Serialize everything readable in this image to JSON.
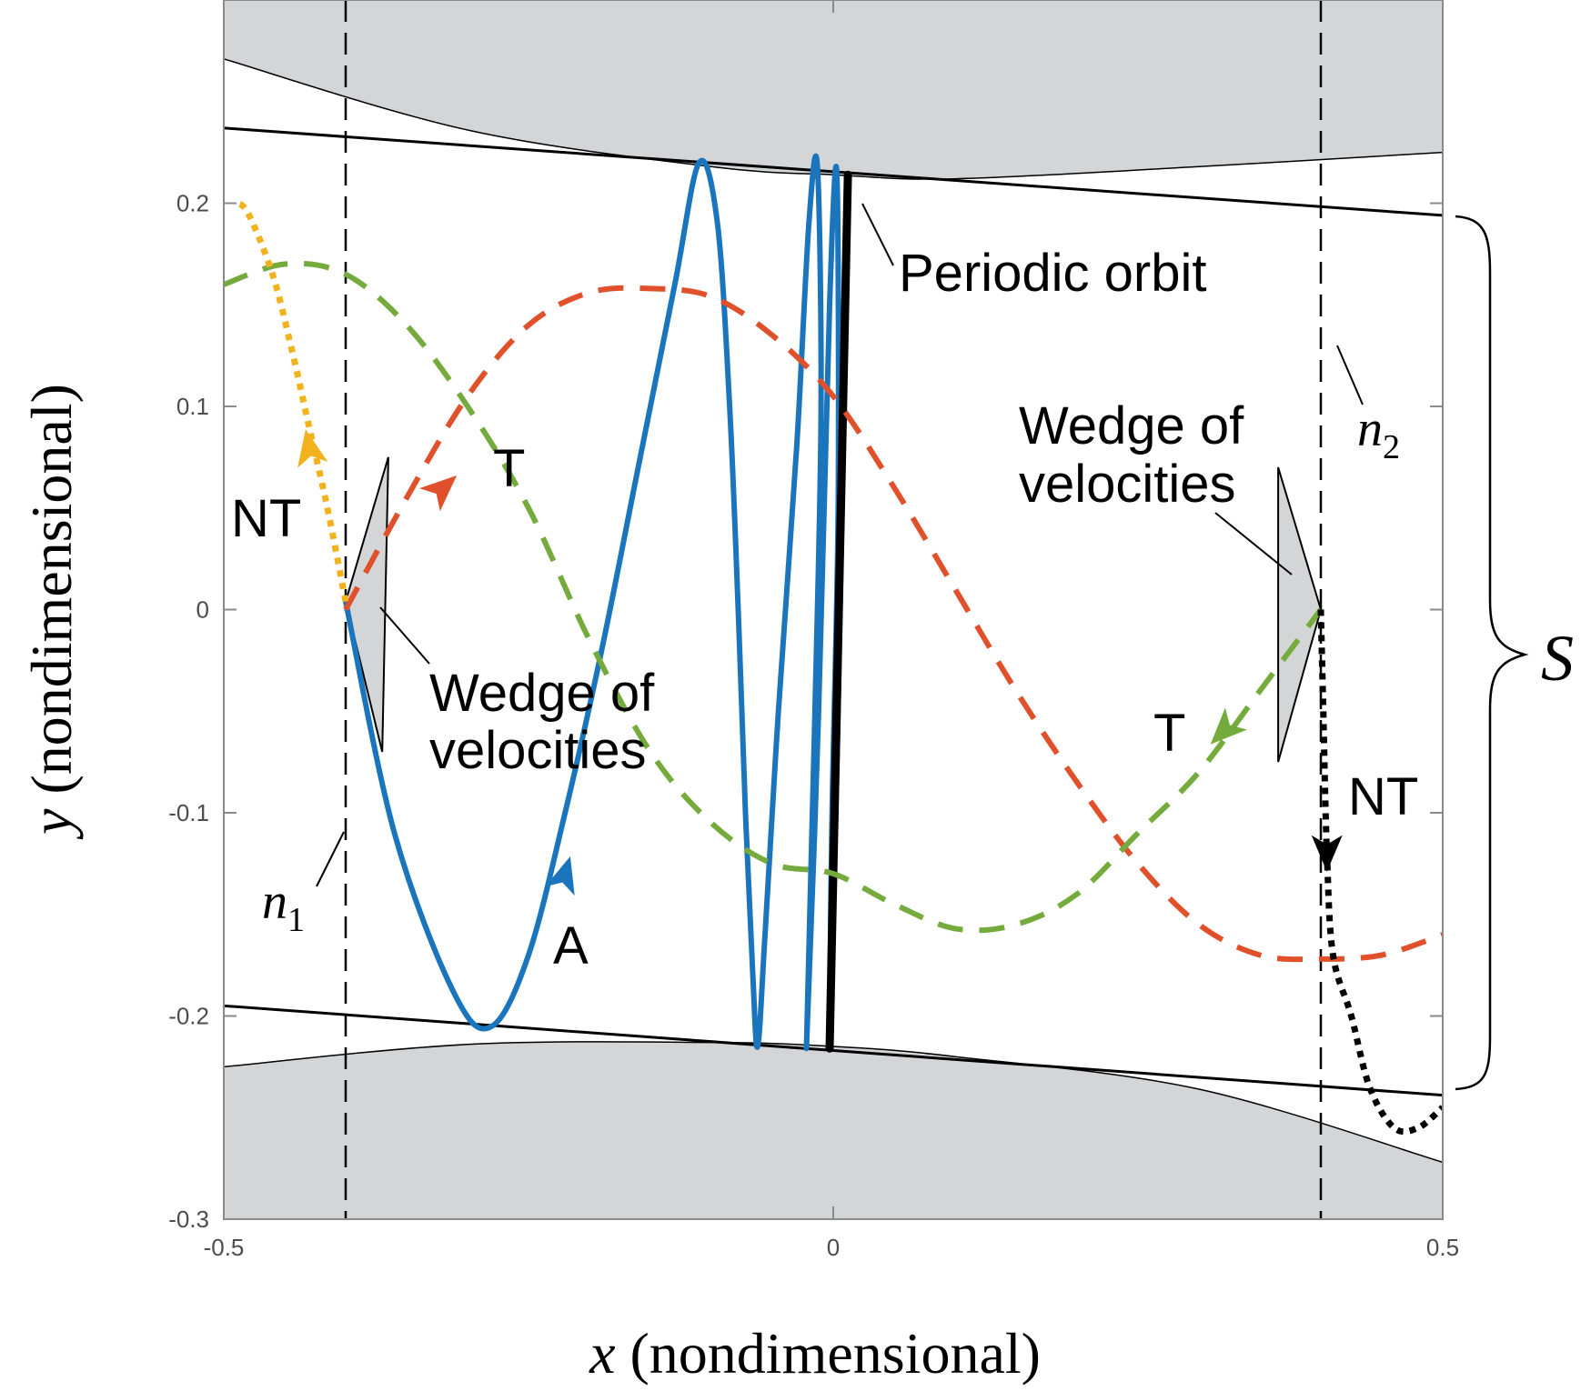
{
  "chart_data": {
    "type": "line",
    "xlabel": {
      "var": "x",
      "rest": " (nondimensional)"
    },
    "ylabel": {
      "var": "y",
      "rest": " (nondimensional)"
    },
    "xlim": [
      -0.5,
      0.5
    ],
    "ylim": [
      -0.3,
      0.3
    ],
    "x_ticks": [
      {
        "value": -0.5,
        "label": "-0.5"
      },
      {
        "value": 0,
        "label": "0"
      },
      {
        "value": 0.5,
        "label": "0.5"
      }
    ],
    "y_ticks": [
      {
        "value": 0.2,
        "label": "0.2"
      },
      {
        "value": 0.1,
        "label": "0.1"
      },
      {
        "value": 0,
        "label": "0"
      },
      {
        "value": -0.1,
        "label": "-0.1"
      },
      {
        "value": -0.2,
        "label": "-0.2"
      },
      {
        "value": -0.3,
        "label": "-0.3"
      }
    ],
    "grid": false,
    "colors": {
      "blue": "#1a75bc",
      "orange": "#e0502a",
      "green": "#75ab3c",
      "yellow": "#f1b21e",
      "black": "#000000",
      "forbidden_fill": "#d4d5d6",
      "wedge_fill": "#d4d5d6"
    },
    "energy_boundaries": {
      "upper": [
        [
          -0.5,
          0.271
        ],
        [
          -0.3,
          0.236
        ],
        [
          -0.1,
          0.218
        ],
        [
          0.0,
          0.214
        ],
        [
          0.1,
          0.212
        ],
        [
          0.3,
          0.218
        ],
        [
          0.5,
          0.225
        ]
      ],
      "lower": [
        [
          -0.5,
          -0.225
        ],
        [
          -0.3,
          -0.214
        ],
        [
          -0.1,
          -0.213
        ],
        [
          0.0,
          -0.215
        ],
        [
          0.1,
          -0.22
        ],
        [
          0.3,
          -0.236
        ],
        [
          0.5,
          -0.272
        ]
      ]
    },
    "boundary_lines": [
      {
        "from": [
          -0.5,
          0.237
        ],
        "to": [
          0.5,
          0.194
        ]
      },
      {
        "from": [
          -0.5,
          -0.195
        ],
        "to": [
          0.5,
          -0.239
        ]
      }
    ],
    "vertical_lines": [
      {
        "x": -0.4,
        "y_range": [
          -0.3,
          0.3
        ]
      },
      {
        "x": 0.4,
        "y_range": [
          -0.3,
          0.3
        ]
      }
    ],
    "series": [
      {
        "color": "#1a75bc",
        "style": "solid",
        "points": [
          [
            -0.4,
            0.004
          ],
          [
            -0.36,
            -0.11
          ],
          [
            -0.31,
            -0.19
          ],
          [
            -0.28,
            -0.205
          ],
          [
            -0.25,
            -0.17
          ],
          [
            -0.22,
            -0.1
          ],
          [
            -0.19,
            -0.02
          ],
          [
            -0.16,
            0.07
          ],
          [
            -0.13,
            0.16
          ],
          [
            -0.11,
            0.22
          ],
          [
            -0.095,
            0.19
          ],
          [
            -0.085,
            0.1
          ],
          [
            -0.078,
            0.0
          ],
          [
            -0.072,
            -0.1
          ],
          [
            -0.066,
            -0.18
          ],
          [
            -0.062,
            -0.215
          ],
          [
            -0.056,
            -0.16
          ],
          [
            -0.045,
            -0.05
          ],
          [
            -0.03,
            0.08
          ],
          [
            -0.02,
            0.19
          ],
          [
            -0.013,
            0.218
          ],
          [
            -0.01,
            0.1
          ],
          [
            -0.015,
            -0.05
          ],
          [
            -0.022,
            -0.216
          ],
          [
            -0.012,
            -0.05
          ],
          [
            -0.003,
            0.15
          ],
          [
            0.003,
            0.214
          ],
          [
            0.004,
            0.05
          ],
          [
            -0.001,
            -0.1
          ],
          [
            -0.003,
            -0.216
          ],
          [
            0.004,
            -0.05
          ],
          [
            0.012,
            0.214
          ]
        ]
      },
      {
        "color": "#000000",
        "style": "solid",
        "width": "thick",
        "points": [
          [
            -0.003,
            -0.216
          ],
          [
            0.012,
            0.214
          ]
        ]
      },
      {
        "color": "#e0502a",
        "style": "dashed",
        "points": [
          [
            -0.4,
            0.0
          ],
          [
            -0.35,
            0.055
          ],
          [
            -0.3,
            0.105
          ],
          [
            -0.25,
            0.14
          ],
          [
            -0.2,
            0.156
          ],
          [
            -0.15,
            0.158
          ],
          [
            -0.1,
            0.154
          ],
          [
            -0.05,
            0.135
          ],
          [
            0.0,
            0.105
          ],
          [
            0.05,
            0.06
          ],
          [
            0.1,
            0.01
          ],
          [
            0.15,
            -0.04
          ],
          [
            0.2,
            -0.085
          ],
          [
            0.25,
            -0.125
          ],
          [
            0.3,
            -0.155
          ],
          [
            0.35,
            -0.17
          ],
          [
            0.4,
            -0.172
          ],
          [
            0.45,
            -0.17
          ],
          [
            0.5,
            -0.16
          ]
        ]
      },
      {
        "color": "#75ab3c",
        "style": "dashed",
        "points": [
          [
            -0.5,
            0.16
          ],
          [
            -0.45,
            0.17
          ],
          [
            -0.4,
            0.165
          ],
          [
            -0.35,
            0.14
          ],
          [
            -0.3,
            0.1
          ],
          [
            -0.25,
            0.05
          ],
          [
            -0.2,
            -0.015
          ],
          [
            -0.15,
            -0.07
          ],
          [
            -0.1,
            -0.105
          ],
          [
            -0.05,
            -0.125
          ],
          [
            0.0,
            -0.13
          ],
          [
            0.05,
            -0.145
          ],
          [
            0.1,
            -0.157
          ],
          [
            0.15,
            -0.155
          ],
          [
            0.2,
            -0.14
          ],
          [
            0.25,
            -0.11
          ],
          [
            0.3,
            -0.08
          ],
          [
            0.35,
            -0.04
          ],
          [
            0.4,
            0.0
          ]
        ]
      },
      {
        "color": "#f1b21e",
        "style": "dotted",
        "points": [
          [
            -0.4,
            0.004
          ],
          [
            -0.415,
            0.05
          ],
          [
            -0.43,
            0.09
          ],
          [
            -0.445,
            0.13
          ],
          [
            -0.46,
            0.165
          ],
          [
            -0.48,
            0.195
          ],
          [
            -0.49,
            0.2
          ]
        ]
      },
      {
        "color": "#000000",
        "style": "dotted",
        "points": [
          [
            0.4,
            0.0
          ],
          [
            0.402,
            -0.05
          ],
          [
            0.405,
            -0.12
          ],
          [
            0.41,
            -0.17
          ],
          [
            0.425,
            -0.2
          ],
          [
            0.44,
            -0.235
          ],
          [
            0.46,
            -0.255
          ],
          [
            0.48,
            -0.255
          ],
          [
            0.5,
            -0.245
          ]
        ]
      }
    ],
    "arrows": [
      {
        "color": "#1a75bc",
        "at": [
          -0.22,
          -0.13
        ],
        "dir": [
          0.3,
          1
        ]
      },
      {
        "color": "#e0502a",
        "at": [
          -0.32,
          0.06
        ],
        "dir": [
          1,
          0.9
        ]
      },
      {
        "color": "#75ab3c",
        "at": [
          0.32,
          -0.06
        ],
        "dir": [
          -1,
          -1
        ]
      },
      {
        "color": "#f1b21e",
        "at": [
          -0.43,
          0.08
        ],
        "dir": [
          -0.2,
          1
        ]
      },
      {
        "color": "#000000",
        "at": [
          0.405,
          -0.12
        ],
        "dir": [
          0,
          -1
        ]
      }
    ],
    "wedges": [
      [
        [
          -0.4,
          0.004
        ],
        [
          -0.365,
          0.075
        ],
        [
          -0.37,
          -0.07
        ]
      ],
      [
        [
          0.4,
          0.0
        ],
        [
          0.365,
          0.07
        ],
        [
          0.365,
          -0.075
        ]
      ]
    ],
    "annotations": {
      "periodic_orbit": "Periodic orbit",
      "wedge_left": [
        "Wedge of",
        "velocities"
      ],
      "wedge_right": [
        "Wedge of",
        "velocities"
      ],
      "T_left": "T",
      "T_right": "T",
      "NT_left": "NT",
      "NT_right": "NT",
      "A": "A",
      "n1": {
        "base": "n",
        "sub": "1"
      },
      "n2": {
        "base": "n",
        "sub": "2"
      },
      "S": "S"
    }
  }
}
